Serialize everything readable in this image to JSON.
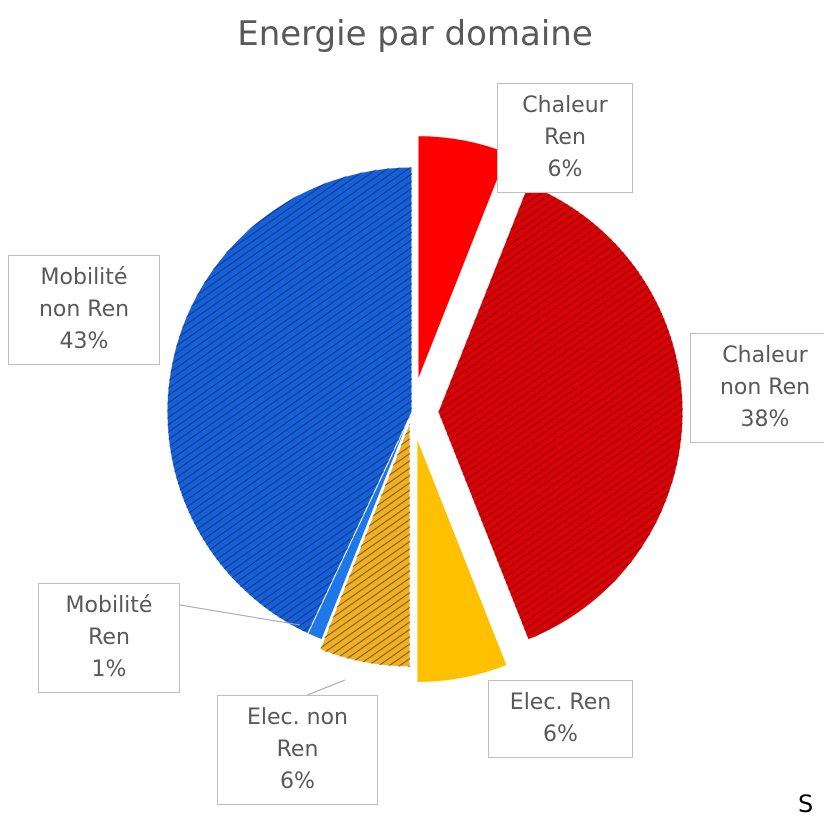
{
  "chart_data": {
    "type": "pie",
    "title": "Energie par domaine",
    "categories": [
      "Chaleur Ren",
      "Chaleur non Ren",
      "Elec. Ren",
      "Elec. non Ren",
      "Mobilité Ren",
      "Mobilité non Ren"
    ],
    "values": [
      6,
      38,
      6,
      6,
      1,
      43
    ],
    "value_labels": [
      "6%",
      "38%",
      "6%",
      "6%",
      "1%",
      "43%"
    ],
    "colors": [
      "#ff0000",
      "#e00000",
      "#ffc000",
      "#f0b020",
      "#1f78e8",
      "#1560d8"
    ],
    "hatched": [
      false,
      true,
      false,
      true,
      false,
      true
    ],
    "annotation": "S"
  }
}
